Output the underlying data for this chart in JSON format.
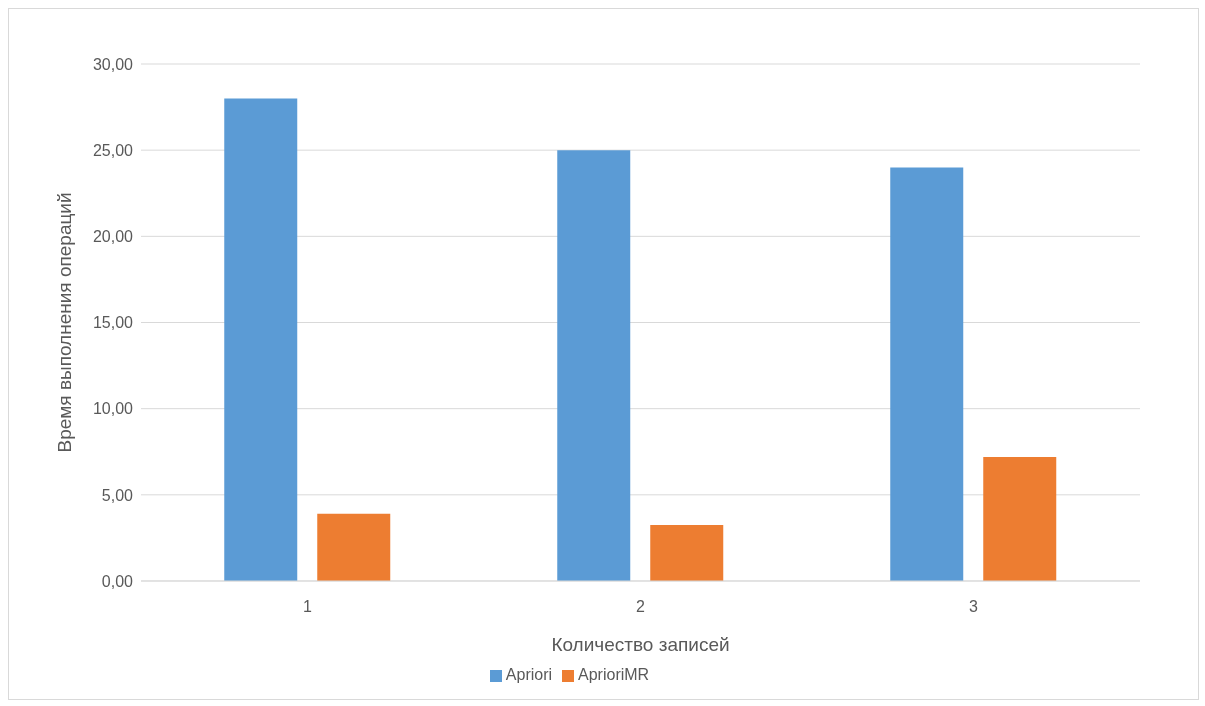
{
  "chart_data": {
    "type": "bar",
    "xlabel": "Количество записей",
    "ylabel": "Время выполнения операций",
    "categories": [
      "1",
      "2",
      "3"
    ],
    "series": [
      {
        "name": "Apriori",
        "color": "#5b9bd5",
        "values": [
          28,
          25,
          24
        ]
      },
      {
        "name": "AprioriMR",
        "color": "#ed7d31",
        "values": [
          3.9,
          3.25,
          7.2
        ]
      }
    ],
    "ylim": [
      0,
      30
    ],
    "yticks": [
      {
        "value": 0,
        "label": "0,00"
      },
      {
        "value": 5,
        "label": "5,00"
      },
      {
        "value": 10,
        "label": "10,00"
      },
      {
        "value": 15,
        "label": "15,00"
      },
      {
        "value": 20,
        "label": "20,00"
      },
      {
        "value": 25,
        "label": "25,00"
      },
      {
        "value": 30,
        "label": "30,00"
      }
    ],
    "grid": "y",
    "legend": "bottom"
  }
}
